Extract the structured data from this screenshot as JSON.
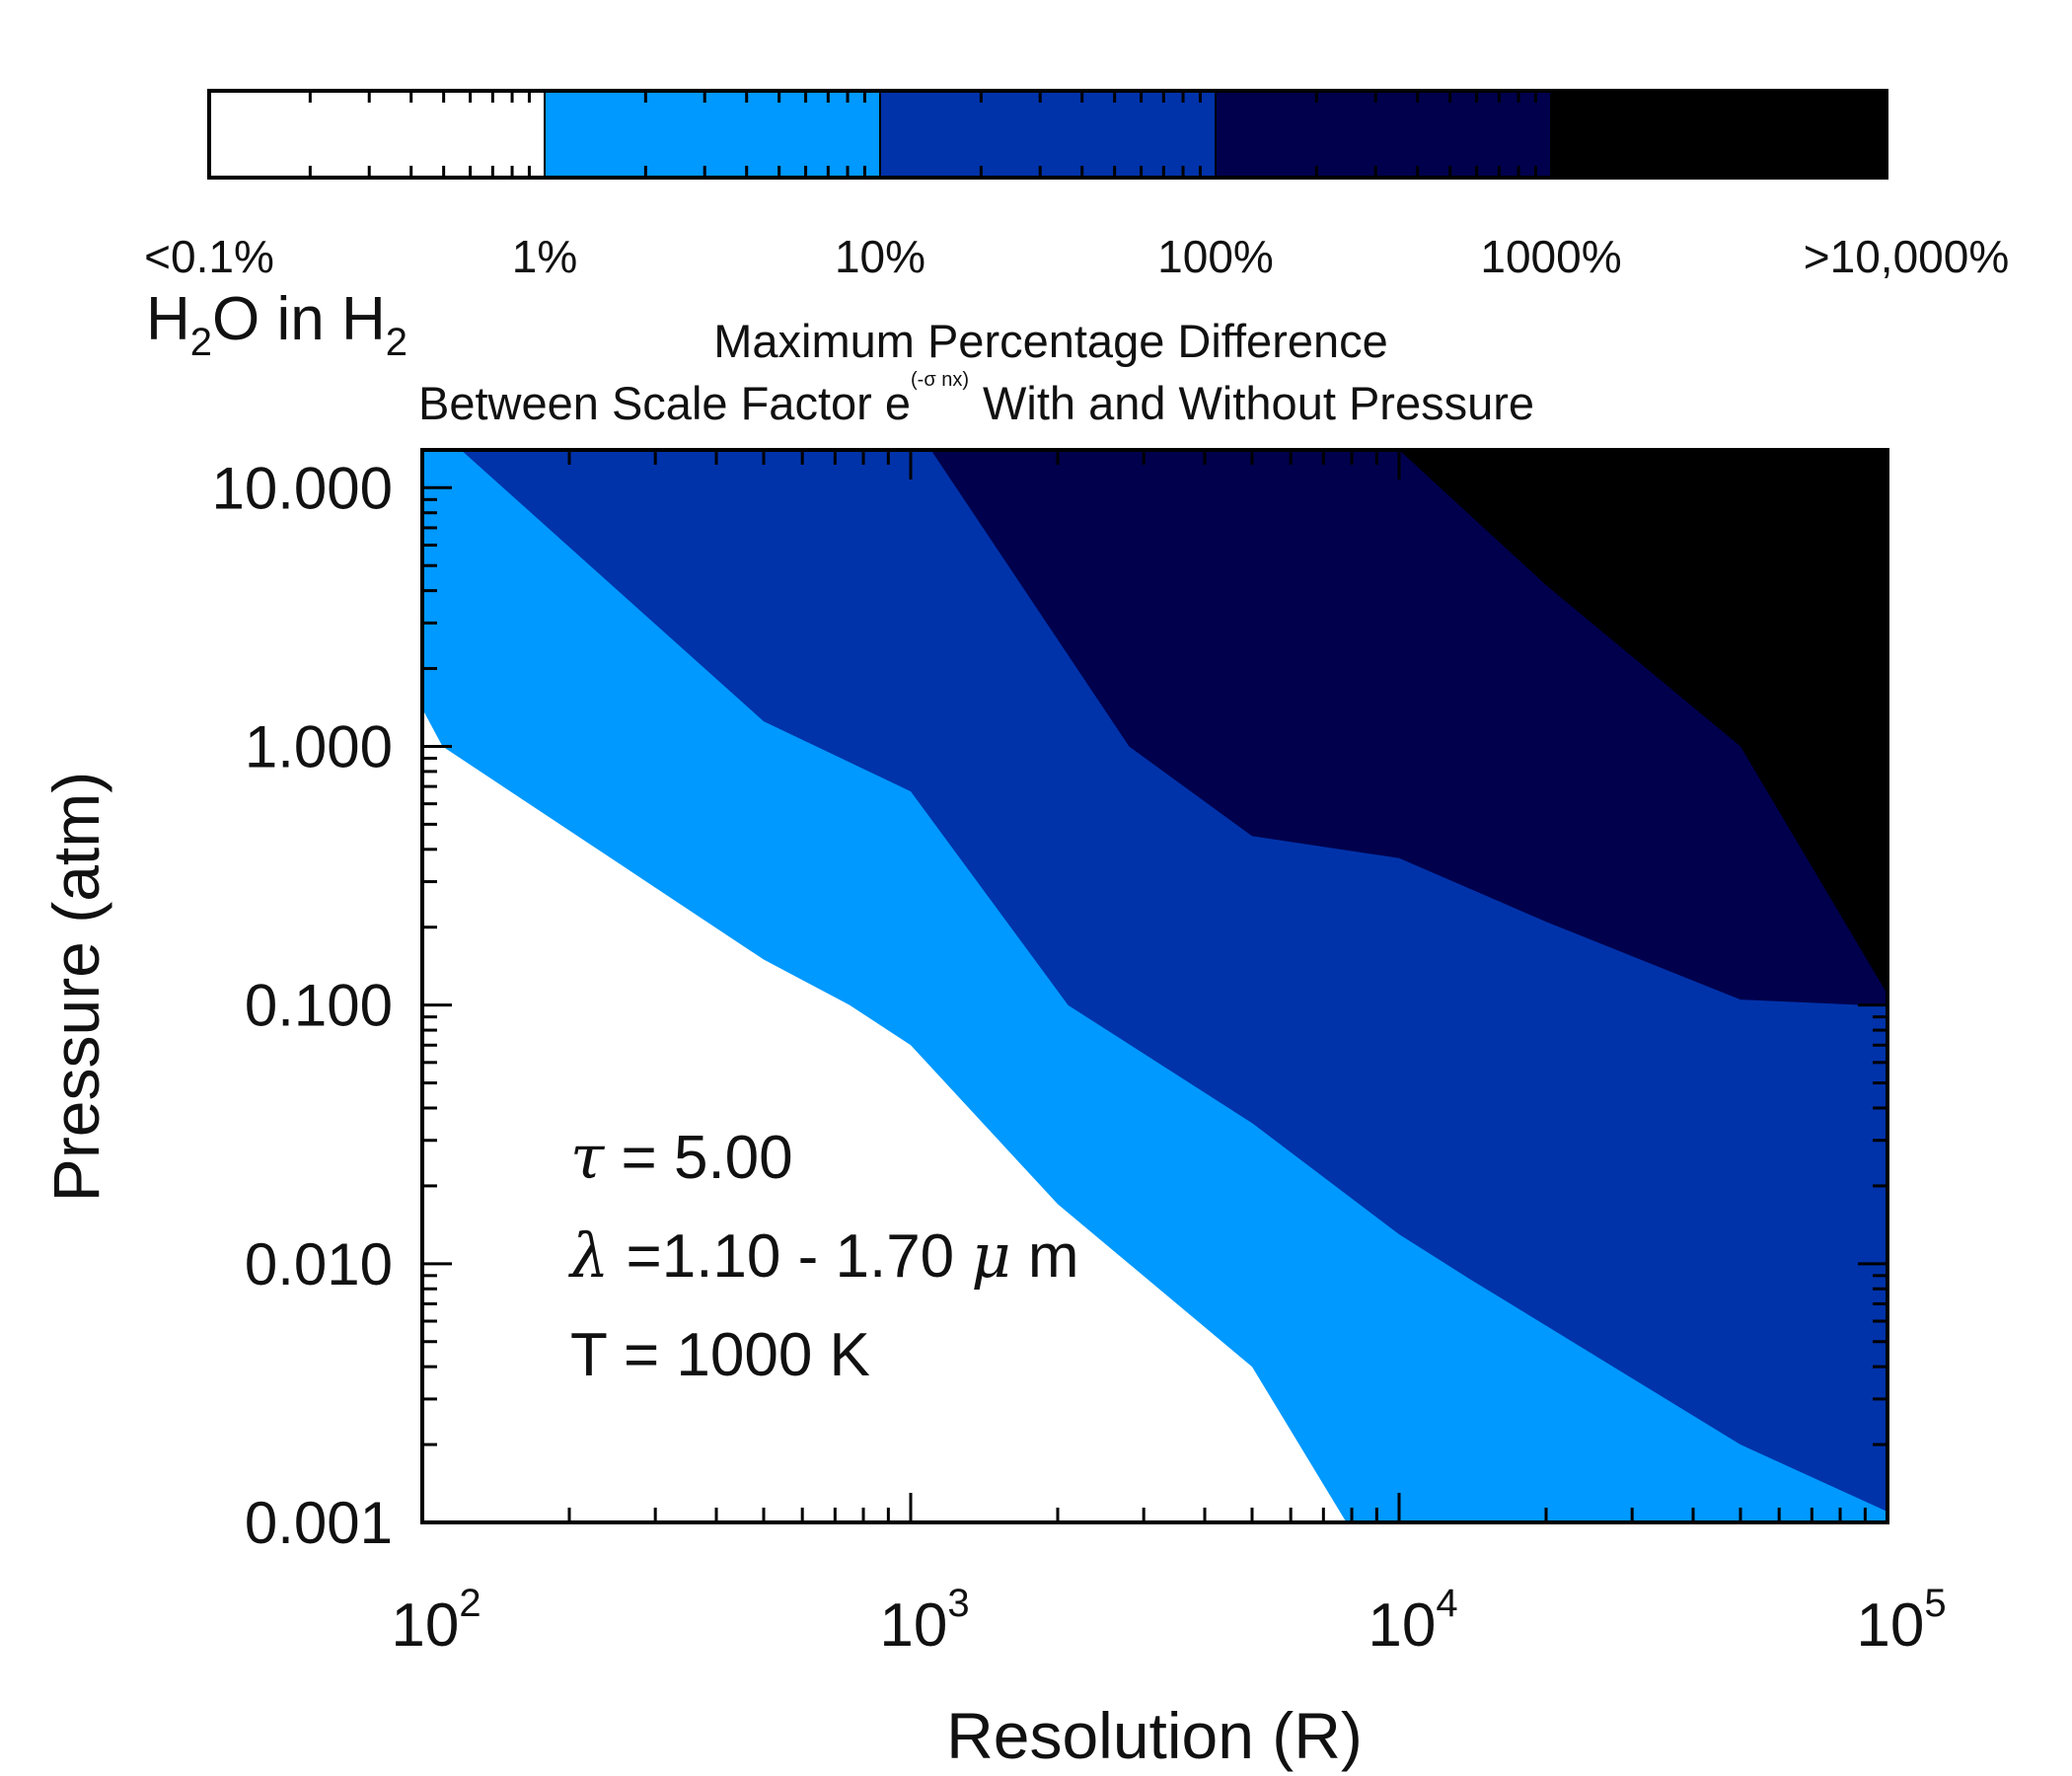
{
  "chart_data": {
    "type": "contour",
    "title": "Maximum Percentage Difference",
    "title_line2_prefix": "Between Scale Factor e",
    "title_superscript": "(-σ nx)",
    "title_line2_suffix": "With and Without Pressure",
    "panel_label": {
      "base": "H",
      "sub1": "2",
      "mid": "O in H",
      "sub2": "2"
    },
    "xlabel": "Resolution (R)",
    "ylabel": "Pressure (atm)",
    "x_scale": "log",
    "y_scale": "log",
    "xlim": [
      100,
      100000
    ],
    "ylim": [
      0.001,
      14
    ],
    "x_ticks": [
      {
        "value": 100,
        "base": "10",
        "exp": "2"
      },
      {
        "value": 1000,
        "base": "10",
        "exp": "3"
      },
      {
        "value": 10000,
        "base": "10",
        "exp": "4"
      },
      {
        "value": 100000,
        "base": "10",
        "exp": "5"
      }
    ],
    "y_ticks": [
      {
        "value": 10,
        "label": "10.000"
      },
      {
        "value": 1,
        "label": "1.000"
      },
      {
        "value": 0.1,
        "label": "0.100"
      },
      {
        "value": 0.01,
        "label": "0.010"
      },
      {
        "value": 0.001,
        "label": "0.001"
      }
    ],
    "annotations": [
      {
        "sym": "τ",
        "text": " = 5.00"
      },
      {
        "sym": "λ",
        "text": " =1.10 - 1.70 ",
        "sym2": "μ",
        "text2": " m"
      },
      {
        "text": "T = 1000 K"
      }
    ],
    "colorbar": {
      "levels": [
        "<0.1%",
        "1%",
        "10%",
        "100%",
        "1000%",
        ">10,000%"
      ],
      "colors": [
        "#ffffff",
        "#0099ff",
        "#0033aa",
        "#00004d",
        "#000000"
      ]
    },
    "regions": [
      {
        "name": "1%-10%",
        "color": "#0099ff",
        "points": [
          [
            100,
            14
          ],
          [
            100,
            1.4
          ],
          [
            110,
            1.0
          ],
          [
            500,
            0.15
          ],
          [
            750,
            0.1
          ],
          [
            1000,
            0.07
          ],
          [
            2000,
            0.017
          ],
          [
            5000,
            0.004
          ],
          [
            7800,
            0.001
          ],
          [
            100000,
            0.001
          ],
          [
            100000,
            14
          ]
        ]
      },
      {
        "name": "10%-100%",
        "color": "#0033aa",
        "points": [
          [
            120,
            14
          ],
          [
            500,
            1.25
          ],
          [
            1000,
            0.67
          ],
          [
            2100,
            0.1
          ],
          [
            5000,
            0.035
          ],
          [
            10000,
            0.013
          ],
          [
            14000,
            0.0087
          ],
          [
            50000,
            0.002
          ],
          [
            100000,
            0.0011
          ],
          [
            100000,
            14
          ]
        ]
      },
      {
        "name": "100%-1000%",
        "color": "#00004d",
        "points": [
          [
            1100,
            14
          ],
          [
            2800,
            1.0
          ],
          [
            5000,
            0.45
          ],
          [
            10000,
            0.37
          ],
          [
            20000,
            0.21
          ],
          [
            50000,
            0.105
          ],
          [
            90000,
            0.1
          ],
          [
            100000,
            0.1
          ],
          [
            100000,
            14
          ]
        ]
      },
      {
        "name": ">10,000%",
        "color": "#000000",
        "points": [
          [
            10000,
            14
          ],
          [
            20000,
            4.2
          ],
          [
            50000,
            1.0
          ],
          [
            100000,
            0.11
          ],
          [
            100000,
            14
          ]
        ]
      }
    ]
  }
}
